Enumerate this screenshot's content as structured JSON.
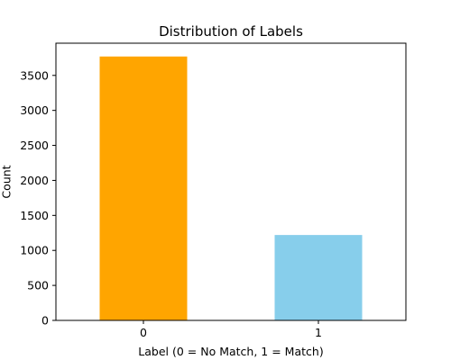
{
  "chart_data": {
    "type": "bar",
    "title": "Distribution of Labels",
    "xlabel": "Label (0 = No Match, 1 = Match)",
    "ylabel": "Count",
    "categories": [
      "0",
      "1"
    ],
    "values": [
      3770,
      1220
    ],
    "colors": [
      "#ffa500",
      "#87ceeb"
    ],
    "ylim": [
      0,
      3960
    ],
    "yticks": [
      0,
      500,
      1000,
      1500,
      2000,
      2500,
      3000,
      3500
    ],
    "grid": false,
    "legend": "none"
  }
}
